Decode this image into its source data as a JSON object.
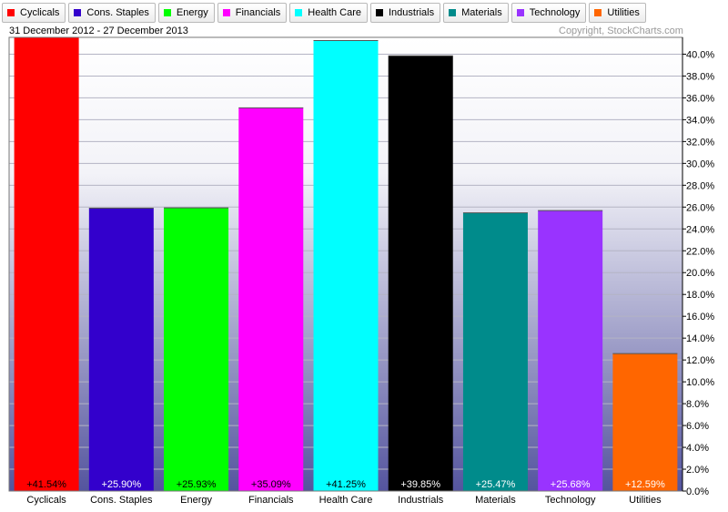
{
  "header": {
    "date_range": "31 December 2012 - 27 December 2013",
    "copyright": "Copyright, StockCharts.com"
  },
  "legend": [
    {
      "label": "Cyclicals",
      "color": "#ff0000"
    },
    {
      "label": "Cons. Staples",
      "color": "#3300cc"
    },
    {
      "label": "Energy",
      "color": "#00ff00"
    },
    {
      "label": "Financials",
      "color": "#ff00ff"
    },
    {
      "label": "Health Care",
      "color": "#00ffff"
    },
    {
      "label": "Industrials",
      "color": "#000000"
    },
    {
      "label": "Materials",
      "color": "#008b8b"
    },
    {
      "label": "Technology",
      "color": "#9933ff"
    },
    {
      "label": "Utilities",
      "color": "#ff6600"
    }
  ],
  "chart_data": {
    "type": "bar",
    "title": "",
    "xlabel": "",
    "ylabel": "",
    "categories": [
      "Cyclicals",
      "Cons. Staples",
      "Energy",
      "Financials",
      "Health Care",
      "Industrials",
      "Materials",
      "Technology",
      "Utilities"
    ],
    "values": [
      41.54,
      25.9,
      25.93,
      35.09,
      41.25,
      39.85,
      25.47,
      25.68,
      12.59
    ],
    "value_labels": [
      "+41.54%",
      "+25.90%",
      "+25.93%",
      "+35.09%",
      "+41.25%",
      "+39.85%",
      "+25.47%",
      "+25.68%",
      "+12.59%"
    ],
    "colors": [
      "#ff0000",
      "#3300cc",
      "#00ff00",
      "#ff00ff",
      "#00ffff",
      "#000000",
      "#008b8b",
      "#9933ff",
      "#ff6600"
    ],
    "label_colors": [
      "#000000",
      "#ffffff",
      "#000000",
      "#000000",
      "#000000",
      "#ffffff",
      "#ffffff",
      "#ffffff",
      "#ffffff"
    ],
    "ylim": [
      0,
      41.54
    ],
    "yticks": [
      0,
      2,
      4,
      6,
      8,
      10,
      12,
      14,
      16,
      18,
      20,
      22,
      24,
      26,
      28,
      30,
      32,
      34,
      36,
      38,
      40
    ],
    "ytick_labels": [
      "0.0%",
      "2.0%",
      "4.0%",
      "6.0%",
      "8.0%",
      "10.0%",
      "12.0%",
      "14.0%",
      "16.0%",
      "18.0%",
      "20.0%",
      "22.0%",
      "24.0%",
      "26.0%",
      "28.0%",
      "30.0%",
      "32.0%",
      "34.0%",
      "36.0%",
      "38.0%",
      "40.0%"
    ],
    "y_axis_position": "right",
    "grid": true,
    "legend_position": "top"
  }
}
